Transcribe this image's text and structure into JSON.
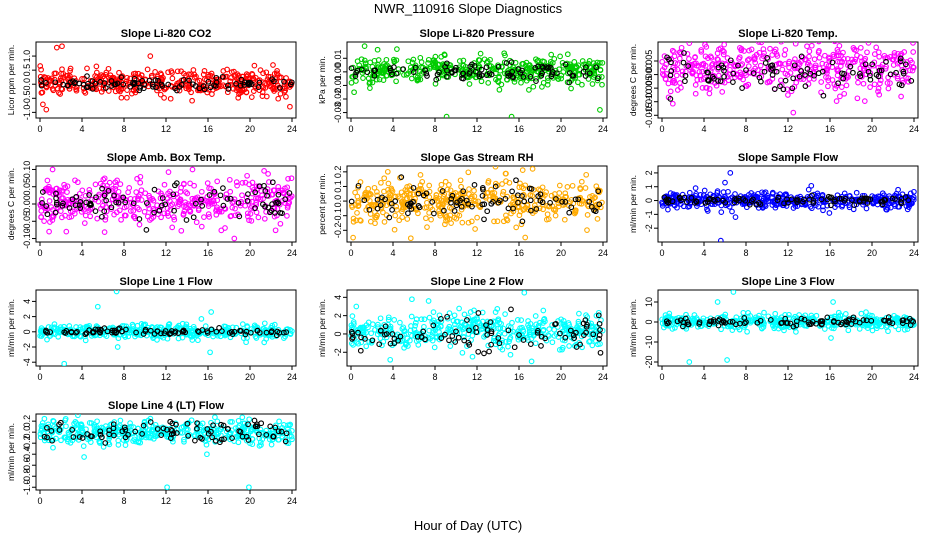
{
  "figure": {
    "title": "NWR_110916  Slope Diagnostics",
    "xlabel": "Hour of Day (UTC)"
  },
  "chart_data": [
    {
      "type": "scatter",
      "title": "Slope Li-820 CO2",
      "xlabel": "",
      "ylabel": "Licor ppm per min.",
      "xlim": [
        0,
        24
      ],
      "ylim": [
        -1.2,
        1.5
      ],
      "xticks": [
        0,
        4,
        8,
        12,
        16,
        20,
        24
      ],
      "yticks": [
        -1.0,
        -0.5,
        0.0,
        0.5,
        1.0
      ],
      "ytick_labels": [
        "-1.0",
        "-0.5",
        "0.0",
        "0.5",
        "1.0"
      ],
      "grid": false,
      "series": [
        {
          "color": "#ff0000",
          "center": 0.05,
          "spread": 0.22,
          "outliers": [
            [
              0.6,
              -0.9
            ],
            [
              1.6,
              1.3
            ],
            [
              2.1,
              1.35
            ],
            [
              10.5,
              1.0
            ],
            [
              21.0,
              0.5
            ],
            [
              23.8,
              -0.8
            ]
          ]
        },
        {
          "color": "#000000",
          "center": 0.0,
          "spread": 0.12
        }
      ]
    },
    {
      "type": "scatter",
      "title": "Slope Li-820 Pressure",
      "xlabel": "",
      "ylabel": "kPa per min.",
      "xlim": [
        0,
        24
      ],
      "ylim": [
        -0.034,
        0.022
      ],
      "xticks": [
        0,
        4,
        8,
        12,
        16,
        20,
        24
      ],
      "yticks": [
        -0.03,
        -0.02,
        -0.01,
        0.0,
        0.01
      ],
      "ytick_labels": [
        "-0.03",
        "-0.02",
        "-0.01",
        "0.00",
        "0.01"
      ],
      "grid": false,
      "series": [
        {
          "color": "#00cc00",
          "center": 0.001,
          "spread": 0.005,
          "outliers": [
            [
              0.3,
              -0.015
            ],
            [
              1.3,
              0.019
            ],
            [
              9.1,
              -0.033
            ],
            [
              15.3,
              -0.033
            ],
            [
              23.7,
              -0.028
            ],
            [
              1.8,
              -0.012
            ]
          ]
        },
        {
          "color": "#000000",
          "center": 0.0,
          "spread": 0.003
        }
      ]
    },
    {
      "type": "scatter",
      "title": "Slope Li-820 Temp.",
      "xlabel": "",
      "ylabel": "degrees C per min.",
      "xlim": [
        0,
        24
      ],
      "ylim": [
        -0.016,
        0.012
      ],
      "xticks": [
        0,
        4,
        8,
        12,
        16,
        20,
        24
      ],
      "yticks": [
        -0.015,
        -0.01,
        -0.005,
        0.0,
        0.005
      ],
      "ytick_labels": [
        "-0.015",
        "-0.010",
        "-0.005",
        "0.000",
        "0.005"
      ],
      "grid": false,
      "series": [
        {
          "color": "#ff00ff",
          "center": 0.002,
          "spread": 0.0045,
          "outliers": [
            [
              4.1,
              0.011
            ],
            [
              12.5,
              -0.014
            ],
            [
              20.4,
              0.01
            ]
          ]
        },
        {
          "color": "#000000",
          "center": 0.001,
          "spread": 0.003
        }
      ]
    },
    {
      "type": "scatter",
      "title": "Slope Amb. Box Temp.",
      "xlabel": "",
      "ylabel": "degrees C per min.",
      "xlim": [
        0,
        24
      ],
      "ylim": [
        -0.11,
        0.11
      ],
      "xticks": [
        0,
        4,
        8,
        12,
        16,
        20,
        24
      ],
      "yticks": [
        -0.1,
        -0.05,
        0.0,
        0.05,
        0.1
      ],
      "ytick_labels": [
        "-0.10",
        "-0.05",
        "0.00",
        "0.05",
        "0.10"
      ],
      "grid": false,
      "series": [
        {
          "color": "#ff00ff",
          "center": 0.005,
          "spread": 0.035,
          "outliers": [
            [
              1.2,
              0.1
            ],
            [
              18.5,
              -0.1
            ],
            [
              2.5,
              -0.08
            ]
          ]
        },
        {
          "color": "#000000",
          "center": 0.0,
          "spread": 0.025
        }
      ]
    },
    {
      "type": "scatter",
      "title": "Slope Gas Stream RH",
      "xlabel": "",
      "ylabel": "percent per min.",
      "xlim": [
        0,
        24
      ],
      "ylim": [
        -0.28,
        0.24
      ],
      "xticks": [
        0,
        4,
        8,
        12,
        16,
        20,
        24
      ],
      "yticks": [
        -0.2,
        -0.1,
        0.0,
        0.1,
        0.2
      ],
      "ytick_labels": [
        "-0.2",
        "-0.1",
        "0.0",
        "0.1",
        "0.2"
      ],
      "grid": false,
      "series": [
        {
          "color": "#ffaa00",
          "center": 0.0,
          "spread": 0.075,
          "outliers": [
            [
              0.2,
              -0.25
            ],
            [
              3.5,
              0.2
            ],
            [
              17.3,
              0.22
            ],
            [
              22.4,
              0.18
            ]
          ]
        },
        {
          "color": "#000000",
          "center": 0.0,
          "spread": 0.06
        }
      ]
    },
    {
      "type": "scatter",
      "title": "Slope Sample Flow",
      "xlabel": "",
      "ylabel": "ml/min per min.",
      "xlim": [
        0,
        24
      ],
      "ylim": [
        -3.0,
        2.5
      ],
      "xticks": [
        0,
        4,
        8,
        12,
        16,
        20,
        24
      ],
      "yticks": [
        -2,
        -1,
        0,
        1,
        2
      ],
      "ytick_labels": [
        "-2",
        "-1",
        "0",
        "1",
        "2"
      ],
      "grid": false,
      "series": [
        {
          "color": "#0000ff",
          "center": 0.0,
          "spread": 0.3,
          "outliers": [
            [
              6.5,
              2.0
            ],
            [
              5.6,
              -2.9
            ],
            [
              7.0,
              -1.2
            ],
            [
              6.0,
              1.3
            ],
            [
              3.2,
              0.9
            ]
          ]
        },
        {
          "color": "#000000",
          "center": 0.0,
          "spread": 0.15
        }
      ]
    },
    {
      "type": "scatter",
      "title": "Slope Line 1 Flow",
      "xlabel": "",
      "ylabel": "ml/min per min.",
      "xlim": [
        0,
        24
      ],
      "ylim": [
        -4.5,
        5.5
      ],
      "xticks": [
        0,
        4,
        8,
        12,
        16,
        20,
        24
      ],
      "yticks": [
        -4,
        -2,
        0,
        2,
        4
      ],
      "ytick_labels": [
        "-4",
        "-2",
        "0",
        "2",
        "4"
      ],
      "grid": false,
      "series": [
        {
          "color": "#00ffff",
          "center": 0.0,
          "spread": 0.45,
          "outliers": [
            [
              7.3,
              5.3
            ],
            [
              5.5,
              3.3
            ],
            [
              16.3,
              2.6
            ],
            [
              16.2,
              -2.7
            ],
            [
              2.3,
              -4.2
            ],
            [
              7.4,
              -2.0
            ]
          ]
        },
        {
          "color": "#000000",
          "center": 0.0,
          "spread": 0.2
        }
      ]
    },
    {
      "type": "scatter",
      "title": "Slope Line 2 Flow",
      "xlabel": "",
      "ylabel": "ml/min per min.",
      "xlim": [
        0,
        24
      ],
      "ylim": [
        -3.5,
        4.8
      ],
      "xticks": [
        0,
        4,
        8,
        12,
        16,
        20,
        24
      ],
      "yticks": [
        -2,
        0,
        2,
        4
      ],
      "ytick_labels": [
        "-2",
        "0",
        "2",
        "4"
      ],
      "grid": false,
      "series": [
        {
          "color": "#00ffff",
          "center": 0.3,
          "spread": 1.0,
          "outliers": [
            [
              16.5,
              4.5
            ],
            [
              5.8,
              3.8
            ],
            [
              17.2,
              -3.0
            ],
            [
              0.5,
              3.0
            ]
          ]
        },
        {
          "color": "#000000",
          "center": 0.0,
          "spread": 0.9
        }
      ]
    },
    {
      "type": "scatter",
      "title": "Slope Line 3 Flow",
      "xlabel": "",
      "ylabel": "ml/min per min.",
      "xlim": [
        0,
        24
      ],
      "ylim": [
        -22,
        16
      ],
      "xticks": [
        0,
        4,
        8,
        12,
        16,
        20,
        24
      ],
      "yticks": [
        -20,
        -10,
        0,
        10
      ],
      "ytick_labels": [
        "-20",
        "-10",
        "0",
        "10"
      ],
      "grid": false,
      "series": [
        {
          "color": "#00ffff",
          "center": 0.0,
          "spread": 1.8,
          "outliers": [
            [
              6.8,
              15
            ],
            [
              5.3,
              10
            ],
            [
              6.2,
              -19
            ],
            [
              2.6,
              -20
            ],
            [
              16.3,
              10
            ],
            [
              16.1,
              -8
            ]
          ]
        },
        {
          "color": "#000000",
          "center": 0.0,
          "spread": 0.9
        }
      ]
    },
    {
      "type": "scatter",
      "title": "Slope Line 4 (LT) Flow",
      "xlabel": "",
      "ylabel": "ml/min per min.",
      "xlim": [
        0,
        24
      ],
      "ylim": [
        -1.05,
        0.33
      ],
      "xticks": [
        0,
        4,
        8,
        12,
        16,
        20,
        24
      ],
      "yticks": [
        -1.0,
        -0.8,
        -0.6,
        -0.4,
        -0.2,
        0.0,
        0.2
      ],
      "ytick_labels": [
        "-1.0",
        "-0.8",
        "-0.6",
        "-0.4",
        "-0.2",
        "0.0",
        "0.2"
      ],
      "grid": false,
      "series": [
        {
          "color": "#00ffff",
          "center": 0.0,
          "spread": 0.11,
          "outliers": [
            [
              12.1,
              -1.0
            ],
            [
              19.9,
              -1.0
            ],
            [
              4.2,
              -0.45
            ],
            [
              15.9,
              -0.4
            ]
          ]
        },
        {
          "color": "#000000",
          "center": 0.0,
          "spread": 0.1
        }
      ]
    }
  ]
}
